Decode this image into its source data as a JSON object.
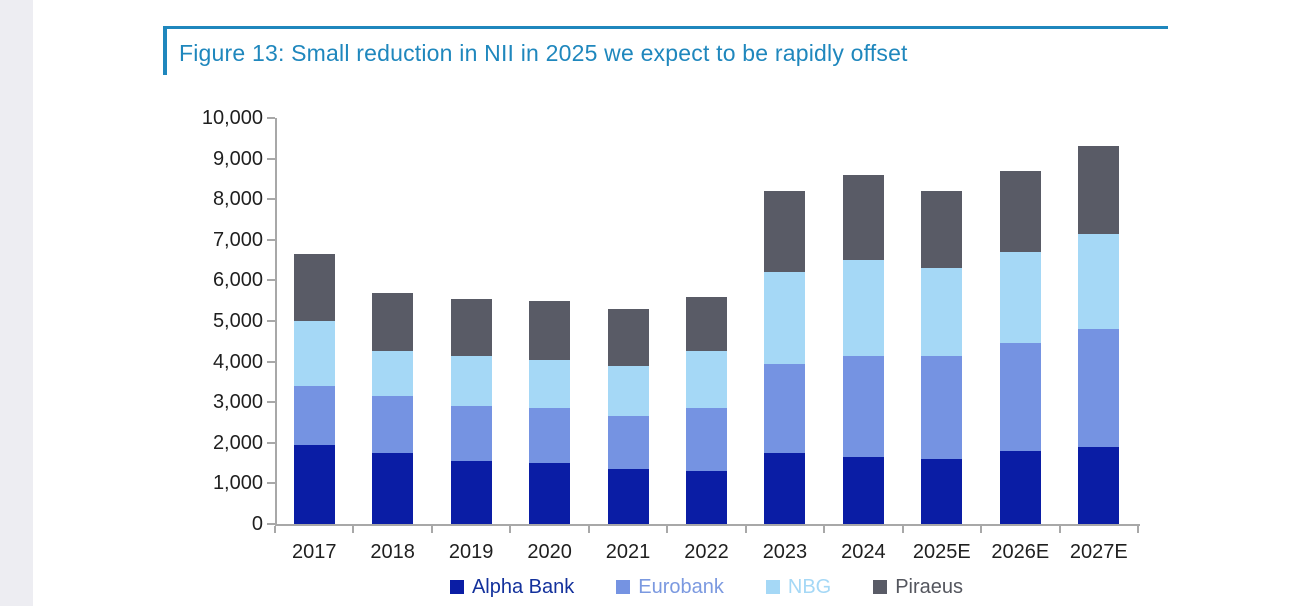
{
  "figure": {
    "title": "Figure 13: Small reduction in NII in 2025 we expect to be rapidly offset"
  },
  "colors": {
    "accent": "#1f87bd",
    "axis": "#a8a8a8",
    "text": "#1f1f1f",
    "edge_strip": "#ededf2",
    "background": "#ffffff"
  },
  "chart_data": {
    "type": "bar",
    "stacked": true,
    "title": "Figure 13: Small reduction in NII in 2025 we expect to be rapidly offset",
    "xlabel": "",
    "ylabel": "",
    "ylim": [
      0,
      10000
    ],
    "y_tick_step": 1000,
    "y_tick_labels": [
      "0",
      "1,000",
      "2,000",
      "3,000",
      "4,000",
      "5,000",
      "6,000",
      "7,000",
      "8,000",
      "9,000",
      "10,000"
    ],
    "grid": false,
    "legend_position": "bottom",
    "categories": [
      "2017",
      "2018",
      "2019",
      "2020",
      "2021",
      "2022",
      "2023",
      "2024",
      "2025E",
      "2026E",
      "2027E"
    ],
    "series": [
      {
        "name": "Alpha Bank",
        "color": "#0a1da5",
        "legend_text_color": "#13319c",
        "values": [
          1950,
          1750,
          1550,
          1500,
          1350,
          1300,
          1750,
          1650,
          1600,
          1800,
          1900
        ]
      },
      {
        "name": "Eurobank",
        "color": "#7593e2",
        "legend_text_color": "#7b99e0",
        "values": [
          1450,
          1400,
          1350,
          1350,
          1300,
          1550,
          2200,
          2500,
          2550,
          2650,
          2900
        ]
      },
      {
        "name": "NBG",
        "color": "#a5d8f6",
        "legend_text_color": "#a5d8f6",
        "values": [
          1600,
          1100,
          1250,
          1200,
          1250,
          1400,
          2250,
          2350,
          2150,
          2250,
          2350
        ]
      },
      {
        "name": "Piraeus",
        "color": "#595b66",
        "legend_text_color": "#54565e",
        "values": [
          1650,
          1450,
          1400,
          1450,
          1400,
          1350,
          2000,
          2100,
          1900,
          2000,
          2150
        ]
      }
    ],
    "stack_totals": [
      6650,
      5700,
      5550,
      5500,
      5300,
      5600,
      8200,
      8600,
      8200,
      8700,
      9300
    ]
  }
}
